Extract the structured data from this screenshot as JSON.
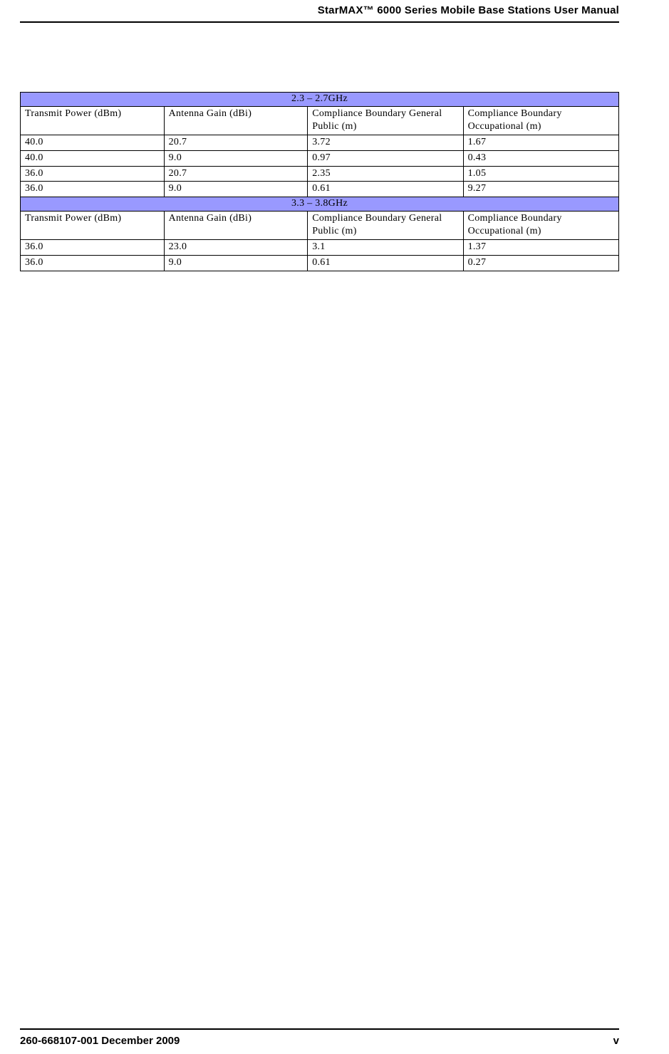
{
  "header": {
    "title": "StarMAX™ 6000 Series Mobile Base Stations User Manual"
  },
  "table": {
    "band1": {
      "title": "2.3 – 2.7GHz",
      "columns": {
        "c1": "Transmit Power (dBm)",
        "c2": "Antenna Gain (dBi)",
        "c3": "Compliance Boundary General Public (m)",
        "c4": "Compliance Boundary Occupational (m)"
      },
      "rows": [
        {
          "c1": "40.0",
          "c2": "20.7",
          "c3": "3.72",
          "c4": "1.67"
        },
        {
          "c1": "40.0",
          "c2": "9.0",
          "c3": "0.97",
          "c4": "0.43"
        },
        {
          "c1": "36.0",
          "c2": "20.7",
          "c3": "2.35",
          "c4": "1.05"
        },
        {
          "c1": "36.0",
          "c2": "9.0",
          "c3": "0.61",
          "c4": "9.27"
        }
      ]
    },
    "band2": {
      "title": "3.3 – 3.8GHz",
      "columns": {
        "c1": "Transmit Power (dBm)",
        "c2": "Antenna Gain (dBi)",
        "c3": "Compliance Boundary General Public (m)",
        "c4": "Compliance Boundary Occupational (m)"
      },
      "rows": [
        {
          "c1": "36.0",
          "c2": "23.0",
          "c3": "3.1",
          "c4": "1.37"
        },
        {
          "c1": "36.0",
          "c2": "9.0",
          "c3": "0.61",
          "c4": "0.27"
        }
      ]
    },
    "style": {
      "band_bg": "#9999ff",
      "border_color": "#000000",
      "font_family": "Bookman Old Style",
      "font_size_pt": 11
    }
  },
  "footer": {
    "left": "260-668107-001 December 2009",
    "right": "v"
  }
}
